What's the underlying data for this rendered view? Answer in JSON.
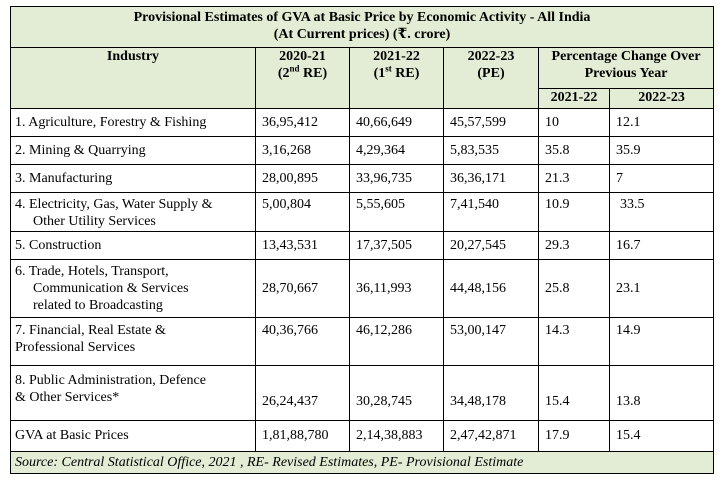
{
  "title": {
    "line1": "Provisional Estimates of GVA at Basic Price by Economic Activity - All India",
    "line2": "(At Current prices) (₹. crore)"
  },
  "headers": {
    "industry": "Industry",
    "c2020": {
      "year": "2020-21",
      "tag_pre": "(2",
      "tag_sup": "nd",
      "tag_post": " RE)"
    },
    "c2021": {
      "year": "2021-22",
      "tag_pre": "(1",
      "tag_sup": "st",
      "tag_post": "  RE)"
    },
    "c2022": {
      "year": "2022-23",
      "tag": "(PE)"
    },
    "pct": "Percentage Change Over Previous Year",
    "pct_a": "2021-22",
    "pct_b": "2022-23"
  },
  "rows": [
    {
      "l1": "1. Agriculture, Forestry & Fishing",
      "l2": "",
      "l3": "",
      "v20": "36,95,412",
      "v21": "40,66,649",
      "v22": "45,57,599",
      "p21": "10",
      "p22": "12.1"
    },
    {
      "l1": "2. Mining & Quarrying",
      "l2": "",
      "l3": "",
      "v20": "3,16,268",
      "v21": "4,29,364",
      "v22": "5,83,535",
      "p21": "35.8",
      "p22": "35.9"
    },
    {
      "l1": "3. Manufacturing",
      "l2": "",
      "l3": "",
      "v20": "28,00,895",
      "v21": "33,96,735",
      "v22": "36,36,171",
      "p21": "21.3",
      "p22": "7"
    },
    {
      "l1": "4. Electricity, Gas, Water Supply &",
      "l2": "Other Utility Services",
      "l3": "",
      "v20": "5,00,804",
      "v21": "5,55,605",
      "v22": "7,41,540",
      "p21": "10.9",
      "p22": "33.5"
    },
    {
      "l1": "5. Construction",
      "l2": "",
      "l3": "",
      "v20": "13,43,531",
      "v21": "17,37,505",
      "v22": "20,27,545",
      "p21": "29.3",
      "p22": "16.7"
    },
    {
      "l1": "6. Trade, Hotels, Transport,",
      "l2": "Communication & Services",
      "l3": "related to Broadcasting",
      "v20": "28,70,667",
      "v21": "36,11,993",
      "v22": "44,48,156",
      "p21": "25.8",
      "p22": "23.1"
    },
    {
      "l1": "7. Financial, Real Estate &",
      "l2": "Professional Services",
      "l3": "",
      "v20": "40,36,766",
      "v21": "46,12,286",
      "v22": "53,00,147",
      "p21": "14.3",
      "p22": "14.9"
    },
    {
      "l1": "8. Public Administration, Defence",
      "l2": "& Other Services*",
      "l3": "",
      "v20": "26,24,437",
      "v21": "30,28,745",
      "v22": "34,48,178",
      "p21": "15.4",
      "p22": "13.8"
    },
    {
      "l1": "GVA at Basic Prices",
      "l2": "",
      "l3": "",
      "v20": "1,81,88,780",
      "v21": "2,14,38,883",
      "v22": "2,47,42,871",
      "p21": "17.9",
      "p22": "15.4"
    }
  ],
  "footer": "Source: Central Statistical Office, 2021 , RE- Revised Estimates, PE- Provisional Estimate",
  "colors": {
    "header_bg": "#e3ecd4",
    "border": "#000000"
  }
}
